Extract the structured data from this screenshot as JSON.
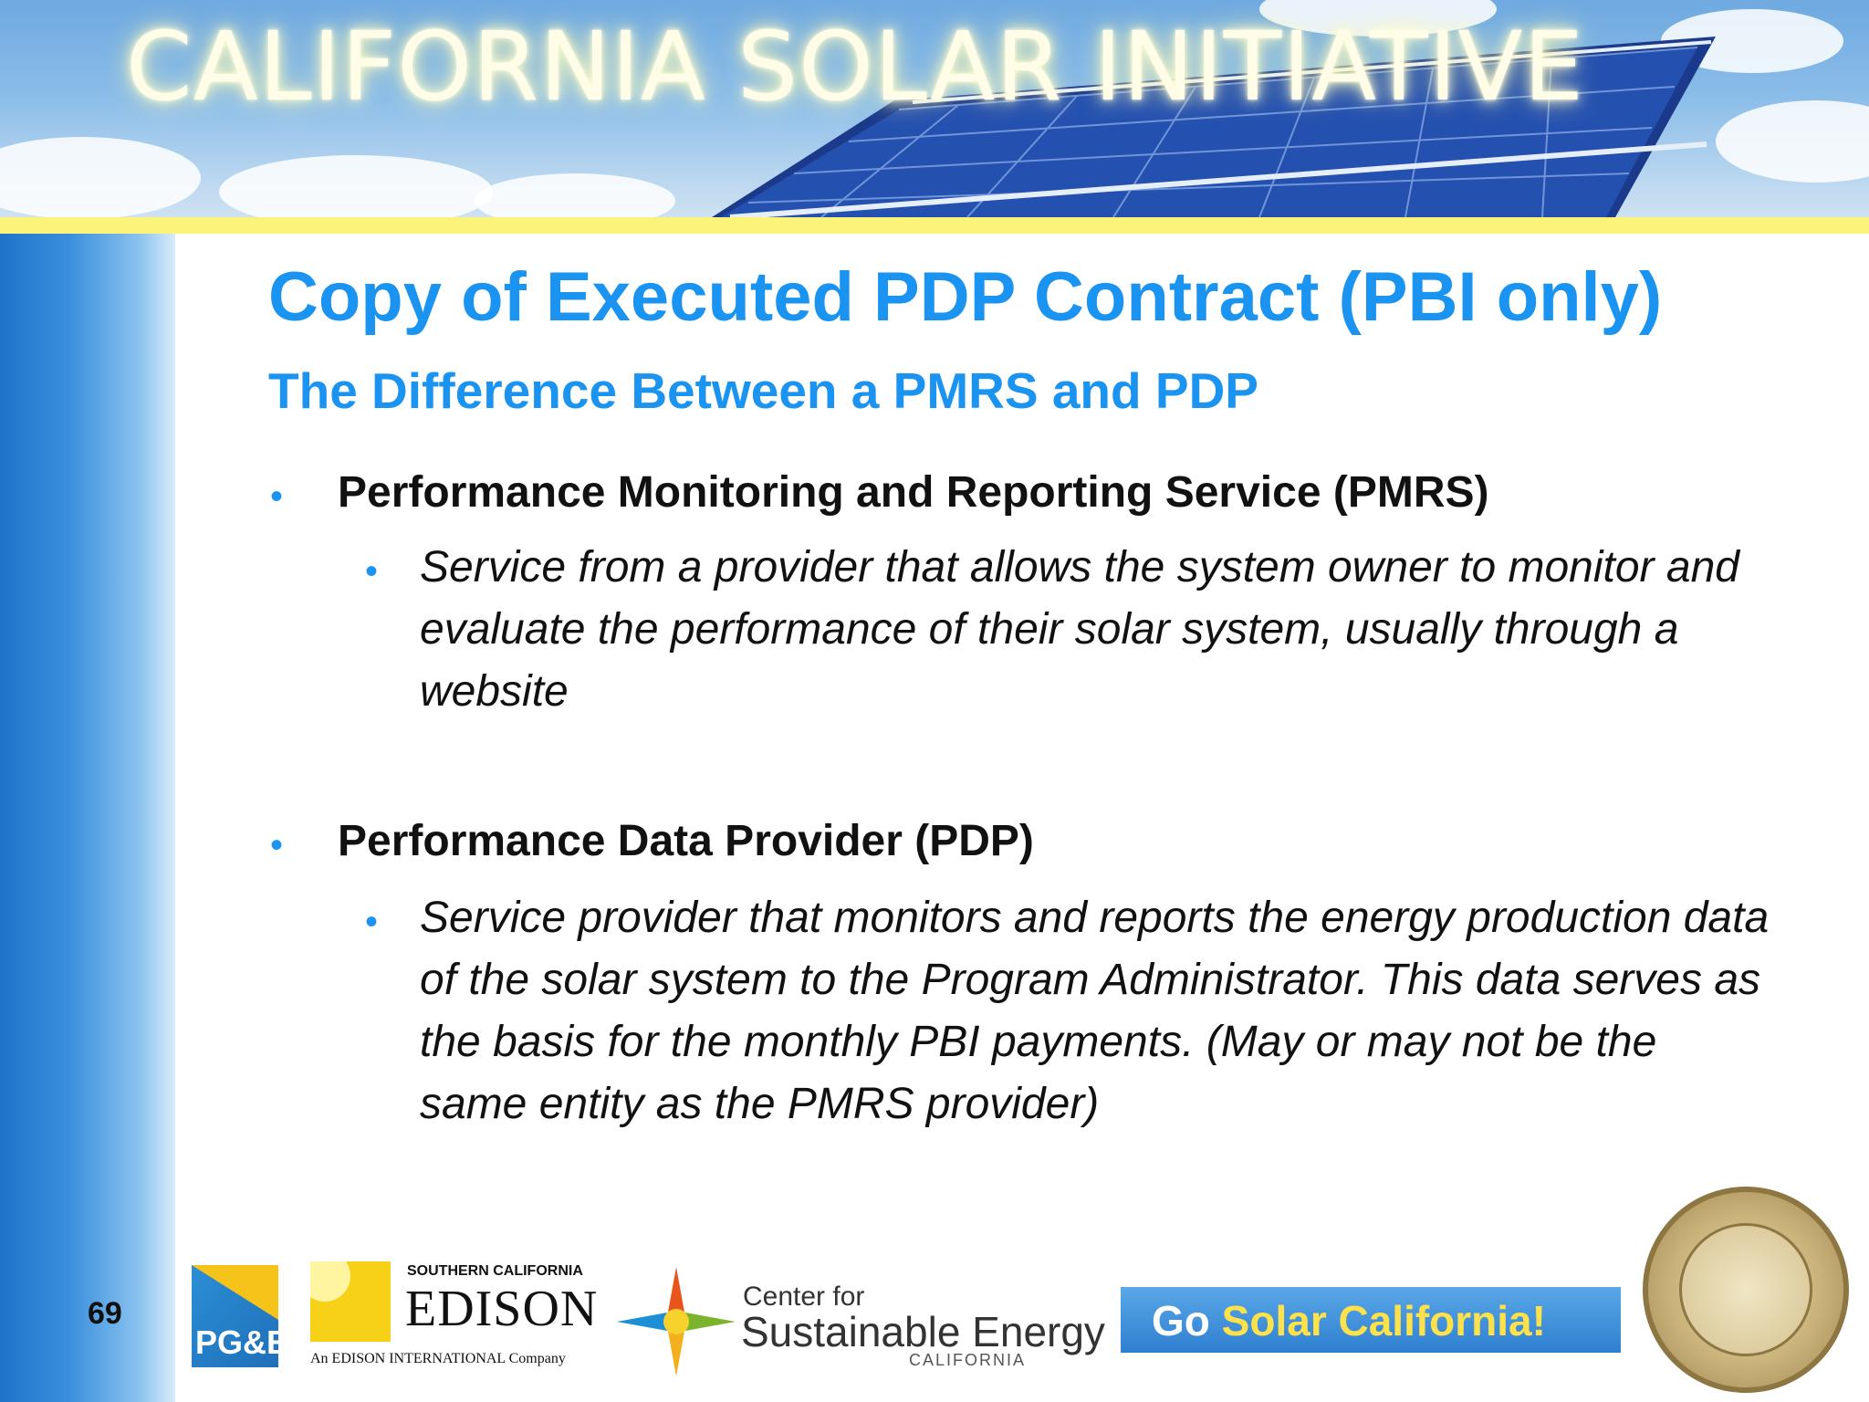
{
  "banner": {
    "title": "CALIFORNIA SOLAR INITIATIVE"
  },
  "slide": {
    "title": "Copy of Executed PDP Contract (PBI only)",
    "subtitle": "The Difference Between a PMRS and PDP",
    "bullets": [
      {
        "heading": "Performance Monitoring and Reporting Service (PMRS)",
        "detail": "Service from a provider that allows the system owner to monitor and evaluate the performance of their solar system, usually through a website"
      },
      {
        "heading": "Performance Data Provider (PDP)",
        "detail": "Service provider that monitors and reports the energy production data of the solar system to the Program Administrator. This data serves as the basis for the monthly PBI payments. (May or may not be the same entity as the PMRS provider)"
      }
    ],
    "page_number": "69"
  },
  "footer": {
    "pge": "PG&E",
    "sce_small": "SOUTHERN CALIFORNIA",
    "sce_big": "EDISON",
    "sce_sub": "An EDISON INTERNATIONAL Company",
    "cse_line1": "Center for",
    "cse_line2": "Sustainable Energy",
    "cse_line3": "CALIFORNIA",
    "go_white": "Go ",
    "go_yellow": "Solar California!"
  },
  "colors": {
    "accent": "#1a94f0",
    "banner_glow": "#fffde8",
    "stripe": "#fbf37a"
  }
}
